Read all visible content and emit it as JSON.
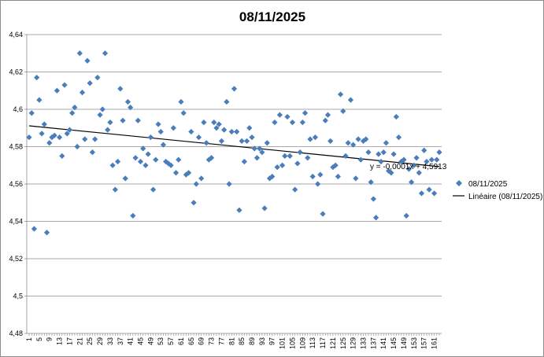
{
  "chart_data": {
    "type": "scatter",
    "title": "08/11/2025",
    "xlabel": "",
    "ylabel": "",
    "ylim": [
      4.48,
      4.64
    ],
    "y_ticks": [
      "4,48",
      "4,5",
      "4,52",
      "4,54",
      "4,56",
      "4,58",
      "4,6",
      "4,62",
      "4,64"
    ],
    "xlim": [
      1,
      163
    ],
    "x_tick_labels": [
      "1",
      "5",
      "9",
      "13",
      "17",
      "21",
      "25",
      "29",
      "33",
      "37",
      "41",
      "45",
      "49",
      "53",
      "57",
      "61",
      "65",
      "69",
      "73",
      "77",
      "81",
      "85",
      "89",
      "93",
      "97",
      "101",
      "105",
      "109",
      "113",
      "117",
      "121",
      "125",
      "129",
      "133",
      "137",
      "141",
      "145",
      "149",
      "153",
      "157",
      "161"
    ],
    "grid": "horizontal",
    "legend_position": "right",
    "series": [
      {
        "name": "08/11/2025",
        "color": "#4a7ebb",
        "marker": "diamond",
        "x": [
          1,
          2,
          3,
          4,
          5,
          6,
          7,
          8,
          9,
          10,
          11,
          12,
          13,
          14,
          15,
          16,
          17,
          18,
          19,
          20,
          21,
          22,
          23,
          24,
          25,
          26,
          27,
          28,
          29,
          30,
          31,
          32,
          33,
          34,
          35,
          36,
          37,
          38,
          39,
          40,
          41,
          42,
          43,
          44,
          45,
          46,
          47,
          48,
          49,
          50,
          51,
          52,
          53,
          54,
          55,
          56,
          57,
          58,
          59,
          60,
          61,
          62,
          63,
          64,
          65,
          66,
          67,
          68,
          69,
          70,
          71,
          72,
          73,
          74,
          75,
          76,
          77,
          78,
          79,
          80,
          81,
          82,
          83,
          84,
          85,
          86,
          87,
          88,
          89,
          90,
          91,
          92,
          93,
          94,
          95,
          96,
          97,
          98,
          99,
          100,
          101,
          102,
          103,
          104,
          105,
          106,
          107,
          108,
          109,
          110,
          111,
          112,
          113,
          114,
          115,
          116,
          117,
          118,
          119,
          120,
          121,
          122,
          123,
          124,
          125,
          126,
          127,
          128,
          129,
          130,
          131,
          132,
          133,
          134,
          135,
          136,
          137,
          138,
          139,
          140,
          141,
          142,
          143,
          144,
          145,
          146,
          147,
          148,
          149,
          150,
          151,
          152,
          153,
          154,
          155,
          156,
          157,
          158,
          159,
          160,
          161,
          162,
          163
        ],
        "y": [
          4.585,
          4.598,
          4.536,
          4.617,
          4.605,
          4.587,
          4.592,
          4.534,
          4.582,
          4.585,
          4.586,
          4.61,
          4.585,
          4.575,
          4.613,
          4.587,
          4.589,
          4.598,
          4.601,
          4.58,
          4.63,
          4.609,
          4.584,
          4.626,
          4.614,
          4.577,
          4.584,
          4.617,
          4.597,
          4.6,
          4.63,
          4.589,
          4.593,
          4.57,
          4.557,
          4.572,
          4.611,
          4.594,
          4.563,
          4.604,
          4.601,
          4.543,
          4.574,
          4.594,
          4.572,
          4.579,
          4.57,
          4.576,
          4.585,
          4.557,
          4.573,
          4.592,
          4.588,
          4.581,
          4.572,
          4.571,
          4.57,
          4.59,
          4.566,
          4.573,
          4.604,
          4.598,
          4.565,
          4.566,
          4.588,
          4.55,
          4.56,
          4.585,
          4.563,
          4.593,
          4.582,
          4.573,
          4.574,
          4.593,
          4.59,
          4.592,
          4.583,
          4.589,
          4.604,
          4.56,
          4.588,
          4.611,
          4.588,
          4.546,
          4.583,
          4.572,
          4.583,
          4.59,
          4.585,
          4.579,
          4.574,
          4.579,
          4.577,
          4.547,
          4.582,
          4.563,
          4.564,
          4.593,
          4.569,
          4.597,
          4.57,
          4.575,
          4.596,
          4.575,
          4.593,
          4.557,
          4.571,
          4.577,
          4.593,
          4.598,
          4.574,
          4.584,
          4.564,
          4.585,
          4.56,
          4.565,
          4.544,
          4.594,
          4.597,
          4.583,
          4.569,
          4.57,
          4.564,
          4.608,
          4.599,
          4.575,
          4.582,
          4.605,
          4.581,
          4.563,
          4.584,
          4.573,
          4.583,
          4.584,
          4.577,
          4.561,
          4.552,
          4.542,
          4.576,
          4.572,
          4.577,
          4.582,
          4.567,
          4.566,
          4.576,
          4.596,
          4.585,
          4.572,
          4.573,
          4.543,
          4.568,
          4.561,
          4.57,
          4.574,
          4.566,
          4.555,
          4.578,
          4.572,
          4.557,
          4.573,
          4.555,
          4.573,
          4.577
        ]
      },
      {
        "name": "Linéaire (08/11/2025)",
        "color": "#000000",
        "type": "trendline",
        "equation": "y = -0,0001x + 4,5913",
        "slope": -0.0001348,
        "intercept": 4.5913
      }
    ]
  }
}
